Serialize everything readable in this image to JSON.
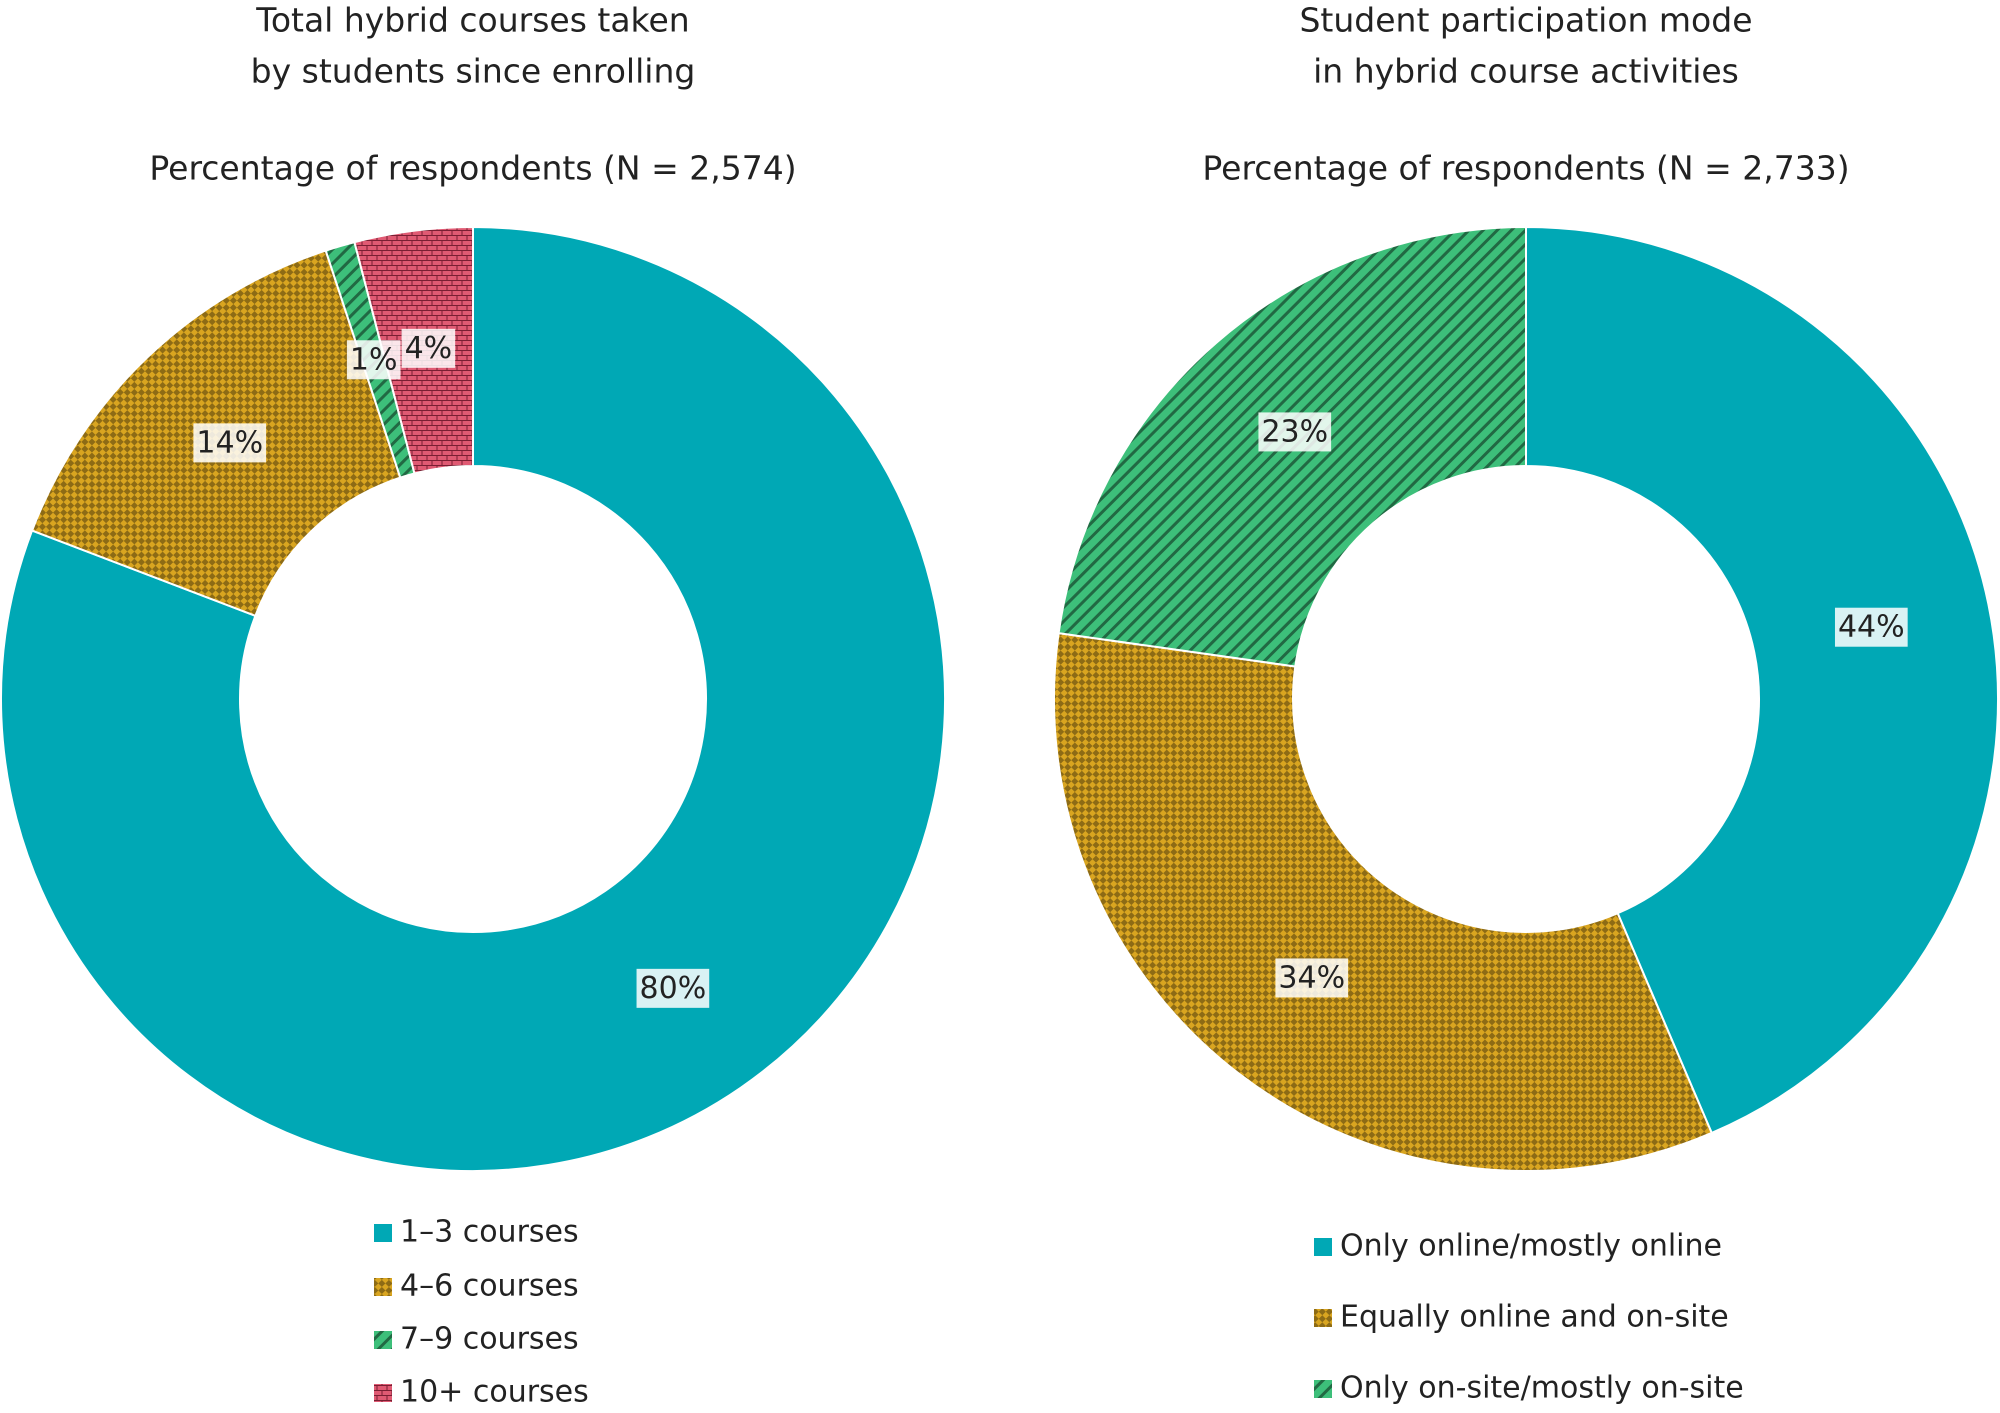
{
  "chart_data": [
    {
      "type": "donut",
      "title": [
        "Total hybrid courses taken",
        "by students since enrolling"
      ],
      "subtitle": "Percentage of respondents (N = 2,574)",
      "categories": [
        "1–3 courses",
        "4–6 courses",
        "7–9 courses",
        "10+ courses"
      ],
      "values": [
        80,
        14,
        1,
        4
      ],
      "value_labels": [
        "80%",
        "14%",
        "1%",
        "4%"
      ],
      "colors": [
        "#00a8b5",
        "#d9a520",
        "#3dbf7a",
        "#e05a73"
      ],
      "patterns": [
        "solid",
        "checker",
        "stripes",
        "bricks"
      ]
    },
    {
      "type": "donut",
      "title": [
        "Student participation mode",
        "in hybrid course activities"
      ],
      "subtitle": "Percentage of respondents (N = 2,733)",
      "categories": [
        "Only online/mostly online",
        "Equally online and on-site",
        "Only on-site/mostly on-site"
      ],
      "values": [
        44,
        34,
        23
      ],
      "value_labels": [
        "44%",
        "34%",
        "23%"
      ],
      "colors": [
        "#00a8b5",
        "#d9a520",
        "#3dbf7a"
      ],
      "patterns": [
        "solid",
        "checker",
        "stripes"
      ]
    }
  ]
}
